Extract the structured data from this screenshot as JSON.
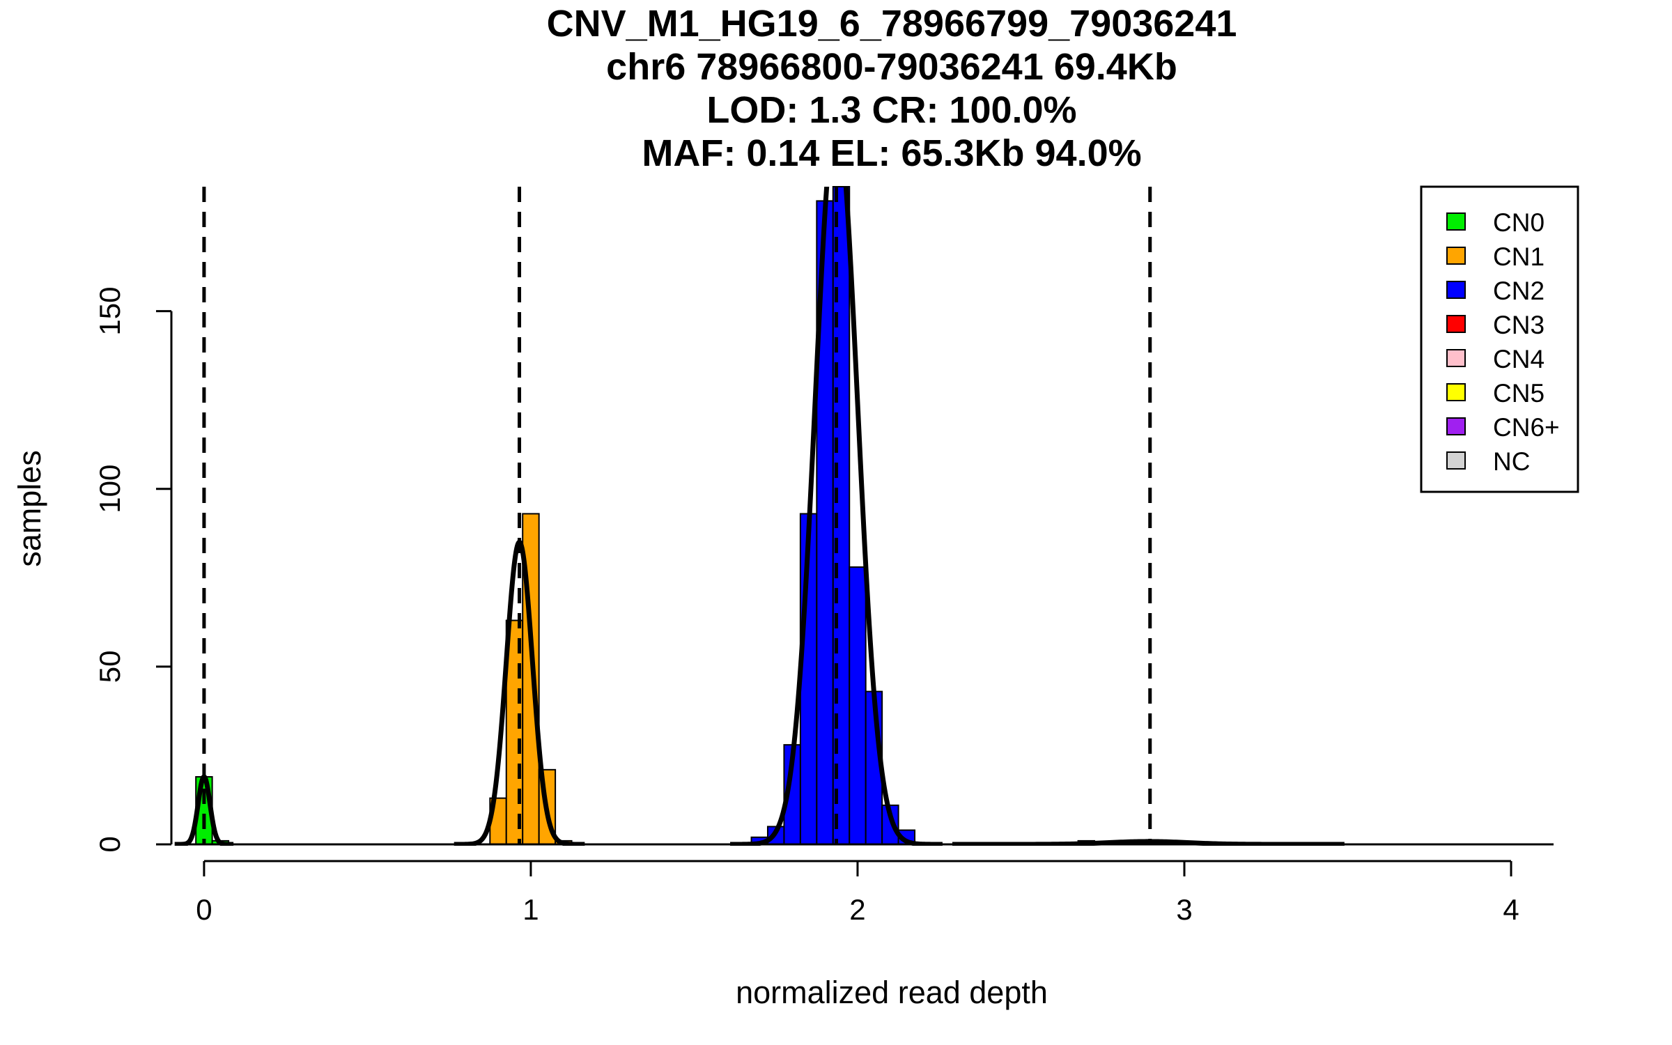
{
  "chart_data": {
    "type": "bar",
    "title_lines": [
      "CNV_M1_HG19_6_78966799_79036241",
      "chr6 78966800-79036241 69.4Kb",
      "LOD: 1.3 CR: 100.0%",
      "MAF: 0.14 EL: 65.3Kb 94.0%"
    ],
    "xlabel": "normalized read depth",
    "ylabel": "samples",
    "xlim": [
      -0.1,
      4.13
    ],
    "ylim": [
      0,
      185
    ],
    "x_ticks": [
      0,
      1,
      2,
      3,
      4
    ],
    "y_ticks": [
      0,
      50,
      100,
      150
    ],
    "bin_width": 0.05,
    "legend": {
      "position": "top-right",
      "entries": [
        {
          "label": "CN0",
          "color": "#00ee00"
        },
        {
          "label": "CN1",
          "color": "#ffa500"
        },
        {
          "label": "CN2",
          "color": "#0000ff"
        },
        {
          "label": "CN3",
          "color": "#ff0000"
        },
        {
          "label": "CN4",
          "color": "#ffc0cb"
        },
        {
          "label": "CN5",
          "color": "#ffff00"
        },
        {
          "label": "CN6+",
          "color": "#a020f0"
        },
        {
          "label": "NC",
          "color": "#d3d3d3"
        }
      ]
    },
    "series": [
      {
        "class": "CN0",
        "color": "#00ee00",
        "bins": [
          {
            "x0": -0.025,
            "value": 19
          },
          {
            "x0": 0.025,
            "value": 1
          }
        ]
      },
      {
        "class": "CN1",
        "color": "#ffa500",
        "bins": [
          {
            "x0": 0.875,
            "value": 13
          },
          {
            "x0": 0.925,
            "value": 63
          },
          {
            "x0": 0.975,
            "value": 93
          },
          {
            "x0": 1.025,
            "value": 21
          },
          {
            "x0": 1.075,
            "value": 1
          }
        ]
      },
      {
        "class": "CN2",
        "color": "#0000ff",
        "bins": [
          {
            "x0": 1.675,
            "value": 2
          },
          {
            "x0": 1.725,
            "value": 5
          },
          {
            "x0": 1.775,
            "value": 28
          },
          {
            "x0": 1.825,
            "value": 93
          },
          {
            "x0": 1.875,
            "value": 181
          },
          {
            "x0": 1.925,
            "value": 190
          },
          {
            "x0": 1.975,
            "value": 78
          },
          {
            "x0": 2.025,
            "value": 43
          },
          {
            "x0": 2.075,
            "value": 11
          },
          {
            "x0": 2.125,
            "value": 4
          }
        ]
      },
      {
        "class": "CN3",
        "color": "#ff0000",
        "bins": [
          {
            "x0": 2.675,
            "value": 1
          }
        ]
      }
    ],
    "density_curves": [
      {
        "mean": 0.0,
        "sd": 0.018,
        "peak": 19
      },
      {
        "mean": 0.965,
        "sd": 0.04,
        "peak": 85
      },
      {
        "mean": 1.935,
        "sd": 0.065,
        "peak": 205
      },
      {
        "mean": 2.89,
        "sd": 0.12,
        "peak": 0.8
      }
    ],
    "vlines": [
      0.0,
      0.965,
      1.935,
      2.895
    ]
  }
}
